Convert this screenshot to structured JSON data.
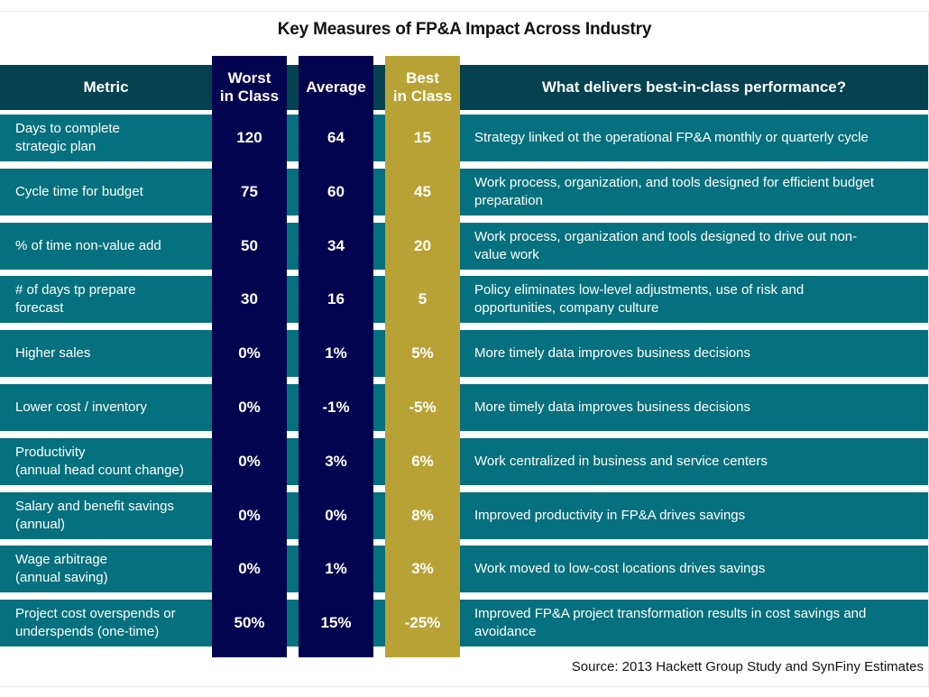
{
  "title": "Key Measures of FP&A Impact Across Industry",
  "header": {
    "metric": "Metric",
    "worst_l1": "Worst",
    "worst_l2": "in Class",
    "average": "Average",
    "best_l1": "Best",
    "best_l2": "in Class",
    "what": "What delivers best-in-class performance?"
  },
  "colors": {
    "header_bar": "#05424f",
    "row_bg": "#05707e",
    "worst_avg_column": "#03044f",
    "best_column": "#b9a235"
  },
  "rows": [
    {
      "metric_l1": "Days to complete",
      "metric_l2": "strategic plan",
      "worst": "120",
      "average": "64",
      "best": "15",
      "desc_l1": "Strategy linked ot the operational FP&A monthly or quarterly cycle",
      "desc_l2": ""
    },
    {
      "metric_l1": "Cycle time for budget",
      "metric_l2": "",
      "worst": "75",
      "average": "60",
      "best": "45",
      "desc_l1": "Work process, organization, and tools designed for efficient budget",
      "desc_l2": "preparation"
    },
    {
      "metric_l1": "% of time non-value add",
      "metric_l2": "",
      "worst": "50",
      "average": "34",
      "best": "20",
      "desc_l1": "Work process, organization and tools designed to drive out non-",
      "desc_l2": "value work"
    },
    {
      "metric_l1": "# of days tp prepare",
      "metric_l2": "forecast",
      "worst": "30",
      "average": "16",
      "best": "5",
      "desc_l1": "Policy eliminates low-level adjustments, use of risk and",
      "desc_l2": "opportunities, company culture"
    },
    {
      "metric_l1": "Higher sales",
      "metric_l2": "",
      "worst": "0%",
      "average": "1%",
      "best": "5%",
      "desc_l1": "More timely data improves business decisions",
      "desc_l2": ""
    },
    {
      "metric_l1": "Lower cost / inventory",
      "metric_l2": "",
      "worst": "0%",
      "average": "-1%",
      "best": "-5%",
      "desc_l1": "More timely data improves business decisions",
      "desc_l2": ""
    },
    {
      "metric_l1": "Productivity",
      "metric_l2": "(annual head count change)",
      "worst": "0%",
      "average": "3%",
      "best": "6%",
      "desc_l1": "Work centralized in business and service centers",
      "desc_l2": ""
    },
    {
      "metric_l1": "Salary and benefit savings",
      "metric_l2": "(annual)",
      "worst": "0%",
      "average": "0%",
      "best": "8%",
      "desc_l1": "Improved productivity in FP&A drives savings",
      "desc_l2": ""
    },
    {
      "metric_l1": "Wage arbitrage",
      "metric_l2": "(annual saving)",
      "worst": "0%",
      "average": "1%",
      "best": "3%",
      "desc_l1": "Work moved to low-cost locations drives savings",
      "desc_l2": ""
    },
    {
      "metric_l1": "Project cost overspends or",
      "metric_l2": "underspends (one-time)",
      "worst": "50%",
      "average": "15%",
      "best": "-25%",
      "desc_l1": "Improved FP&A project transformation results in cost savings and",
      "desc_l2": "avoidance"
    }
  ],
  "source": "Source:  2013 Hackett Group Study and SynFiny Estimates"
}
